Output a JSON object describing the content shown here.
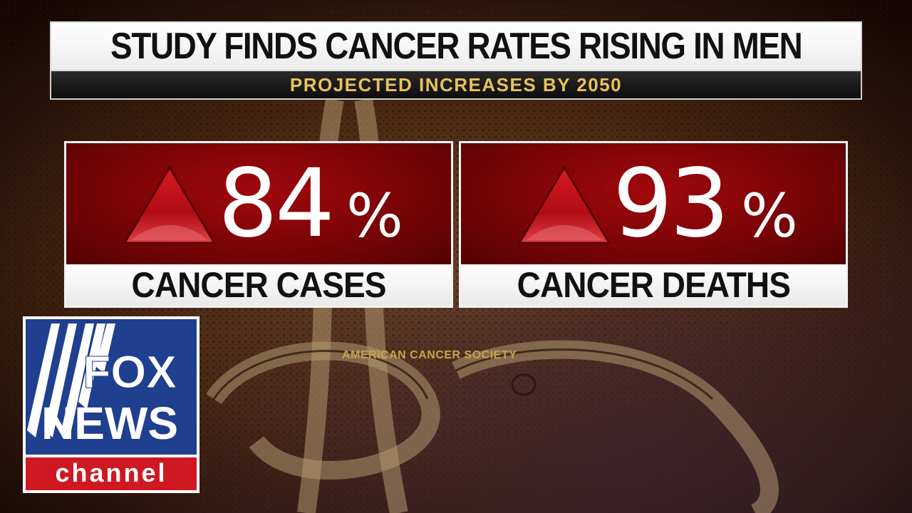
{
  "headline": {
    "title": "STUDY FINDS CANCER RATES RISING IN MEN",
    "subtitle": "PROJECTED INCREASES BY 2050"
  },
  "stats": [
    {
      "value": "84",
      "unit": "%",
      "label": "CANCER CASES",
      "direction": "up"
    },
    {
      "value": "93",
      "unit": "%",
      "label": "CANCER DEATHS",
      "direction": "up"
    }
  ],
  "source": "AMERICAN CANCER SOCIETY",
  "logo": {
    "line1": "FOX",
    "line2": "NEWS",
    "line3": "channel"
  },
  "colors": {
    "card_red": "#8a0508",
    "triangle": "#c8141c",
    "subtitle_gold": "#e8c25a",
    "logo_blue": "#1f3f8f",
    "logo_red": "#d01822"
  }
}
